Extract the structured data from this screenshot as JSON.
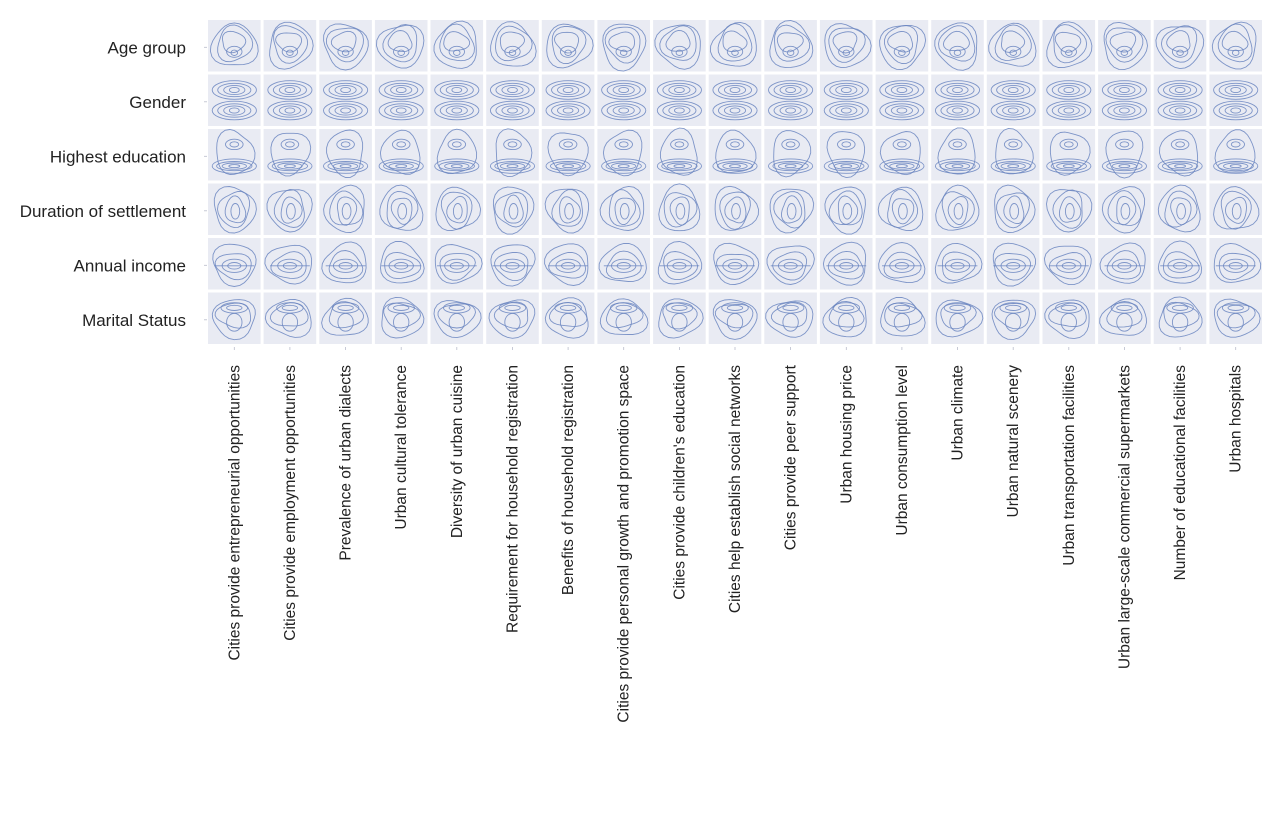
{
  "chart_data": {
    "type": "kde-contour-matrix",
    "rows": [
      "Age group",
      "Gender",
      "Highest education",
      "Duration of settlement",
      "Annual income",
      "Marital Status"
    ],
    "columns": [
      "Cities provide entrepreneurial opportunities",
      "Cities provide employment opportunities",
      "Prevalence of urban dialects",
      "Urban cultural tolerance",
      "Diversity of urban cuisine",
      "Requirement for household registration",
      "Benefits of household registration",
      "Cities provide personal growth and promotion space",
      "Cities provide children's education",
      "Cities help establish social networks",
      "Cities provide peer support",
      "Urban housing price",
      "Urban consumption level",
      "Urban climate",
      "Urban natural scenery",
      "Urban transportation facilities",
      "Urban large-scale commercial supermarkets",
      "Number of educational facilities",
      "Urban hospitals"
    ],
    "row_patterns": [
      "single-peak",
      "two-band",
      "bottom-heavy",
      "elongated",
      "flat-center",
      "top-heavy"
    ],
    "colors": {
      "contour": "#6a85c0",
      "cell_background": "#e9ebf3",
      "page_background": "#ffffff"
    },
    "grid": true,
    "legend": "none"
  }
}
